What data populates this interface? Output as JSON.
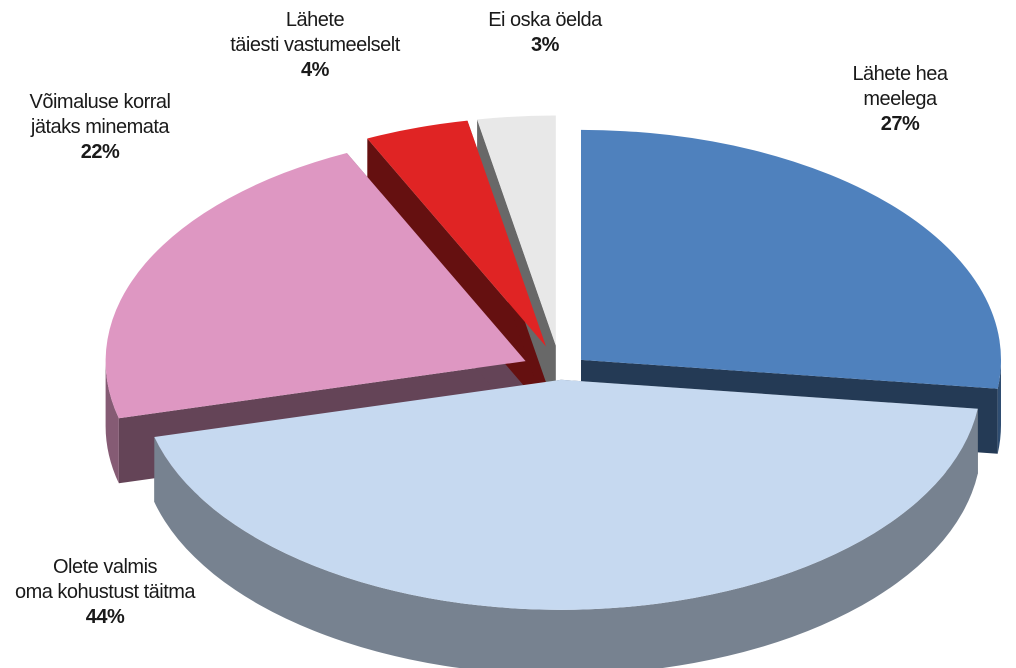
{
  "chart_data": {
    "type": "pie3d",
    "categories": [
      "Lähete hea meelega",
      "Olete valmis\noma kohustust täitma",
      "Võimaluse korral\njätaks minemata",
      "Lähete\ntäiesti vastumeelselt",
      "Ei oska öelda"
    ],
    "values": [
      27,
      44,
      22,
      4,
      3
    ],
    "value_labels": [
      "27%",
      "44%",
      "22%",
      "4%",
      "3%"
    ],
    "colors": [
      "#4f81bd",
      "#c6d9f0",
      "#de97c2",
      "#e02424",
      "#e8e8e8"
    ]
  }
}
